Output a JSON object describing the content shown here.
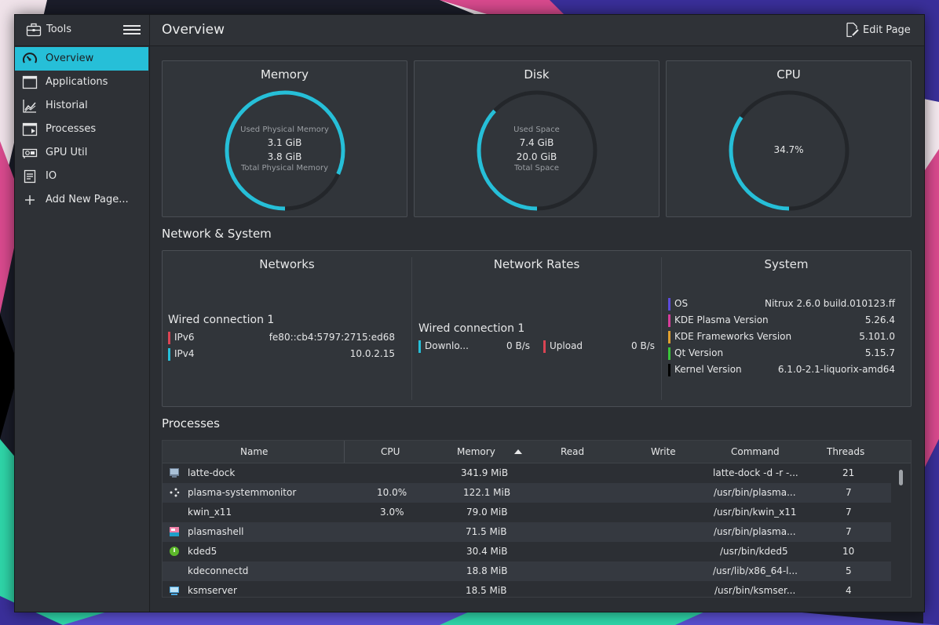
{
  "sidebar": {
    "title": "Tools",
    "items": [
      {
        "label": "Overview",
        "active": true,
        "icon": "gauge-icon"
      },
      {
        "label": "Applications",
        "icon": "window-icon"
      },
      {
        "label": "Historial",
        "icon": "chart-icon"
      },
      {
        "label": "Processes",
        "icon": "process-window-icon"
      },
      {
        "label": "GPU Util",
        "icon": "gpu-icon"
      },
      {
        "label": "IO",
        "icon": "io-icon"
      },
      {
        "label": "Add New Page...",
        "icon": "plus-icon"
      }
    ]
  },
  "header": {
    "title": "Overview",
    "edit_label": "Edit Page"
  },
  "cards": {
    "memory": {
      "title": "Memory",
      "used_label": "Used Physical Memory",
      "used_value": "3.1 GiB",
      "total_value": "3.8 GiB",
      "total_label": "Total Physical Memory",
      "fraction": 0.816
    },
    "disk": {
      "title": "Disk",
      "used_label": "Used Space",
      "used_value": "7.4 GiB",
      "total_value": "20.0 GiB",
      "total_label": "Total Space",
      "fraction": 0.37
    },
    "cpu": {
      "title": "CPU",
      "value": "34.7%",
      "fraction": 0.347
    }
  },
  "network_system": {
    "section_title": "Network & System",
    "networks": {
      "title": "Networks",
      "connection": "Wired connection 1",
      "rows": [
        {
          "key": "IPv6",
          "value": "fe80::cb4:5797:2715:ed68",
          "color": "#da4453"
        },
        {
          "key": "IPv4",
          "value": "10.0.2.15",
          "color": "#26bfd8"
        }
      ]
    },
    "rates": {
      "title": "Network Rates",
      "connection": "Wired connection 1",
      "download_label": "Downlo...",
      "download_value": "0 B/s",
      "download_color": "#26bfd8",
      "upload_label": "Upload",
      "upload_value": "0 B/s",
      "upload_color": "#da4453"
    },
    "system": {
      "title": "System",
      "rows": [
        {
          "key": "OS",
          "value": "Nitrux 2.6.0 build.010123.ff",
          "color": "#5b4bdb"
        },
        {
          "key": "KDE Plasma Version",
          "value": "5.26.4",
          "color": "#d63d9a"
        },
        {
          "key": "KDE Frameworks Version",
          "value": "5.101.0",
          "color": "#e0a030"
        },
        {
          "key": "Qt Version",
          "value": "5.15.7",
          "color": "#3ac43a"
        },
        {
          "key": "Kernel Version",
          "value": "6.1.0-2.1-liquorix-amd64",
          "color": "#000000"
        }
      ]
    }
  },
  "processes": {
    "section_title": "Processes",
    "columns": [
      "Name",
      "CPU",
      "Memory",
      "Read",
      "Write",
      "Command",
      "Threads"
    ],
    "rows": [
      {
        "name": "latte-dock",
        "cpu": "",
        "memory": "341.9 MiB",
        "command": "latte-dock -d -r -...",
        "threads": "21",
        "icon": "latte-dock-icon"
      },
      {
        "name": "plasma-systemmonitor",
        "cpu": "10.0%",
        "memory": "122.1 MiB",
        "command": "/usr/bin/plasma...",
        "threads": "7",
        "icon": "system-monitor-icon"
      },
      {
        "name": "kwin_x11",
        "cpu": "3.0%",
        "memory": "79.0 MiB",
        "command": "/usr/bin/kwin_x11",
        "threads": "7",
        "icon": ""
      },
      {
        "name": "plasmashell",
        "cpu": "",
        "memory": "71.5 MiB",
        "command": "/usr/bin/plasma...",
        "threads": "7",
        "icon": "plasmashell-icon"
      },
      {
        "name": "kded5",
        "cpu": "",
        "memory": "30.4 MiB",
        "command": "/usr/bin/kded5",
        "threads": "10",
        "icon": "kded-icon"
      },
      {
        "name": "kdeconnectd",
        "cpu": "",
        "memory": "18.8 MiB",
        "command": "/usr/lib/x86_64-l...",
        "threads": "5",
        "icon": ""
      },
      {
        "name": "ksmserver",
        "cpu": "",
        "memory": "18.5 MiB",
        "command": "/usr/bin/ksmser...",
        "threads": "4",
        "icon": "ksmserver-icon"
      }
    ]
  },
  "colors": {
    "accent": "#26bfd8",
    "track": "#23262a"
  }
}
